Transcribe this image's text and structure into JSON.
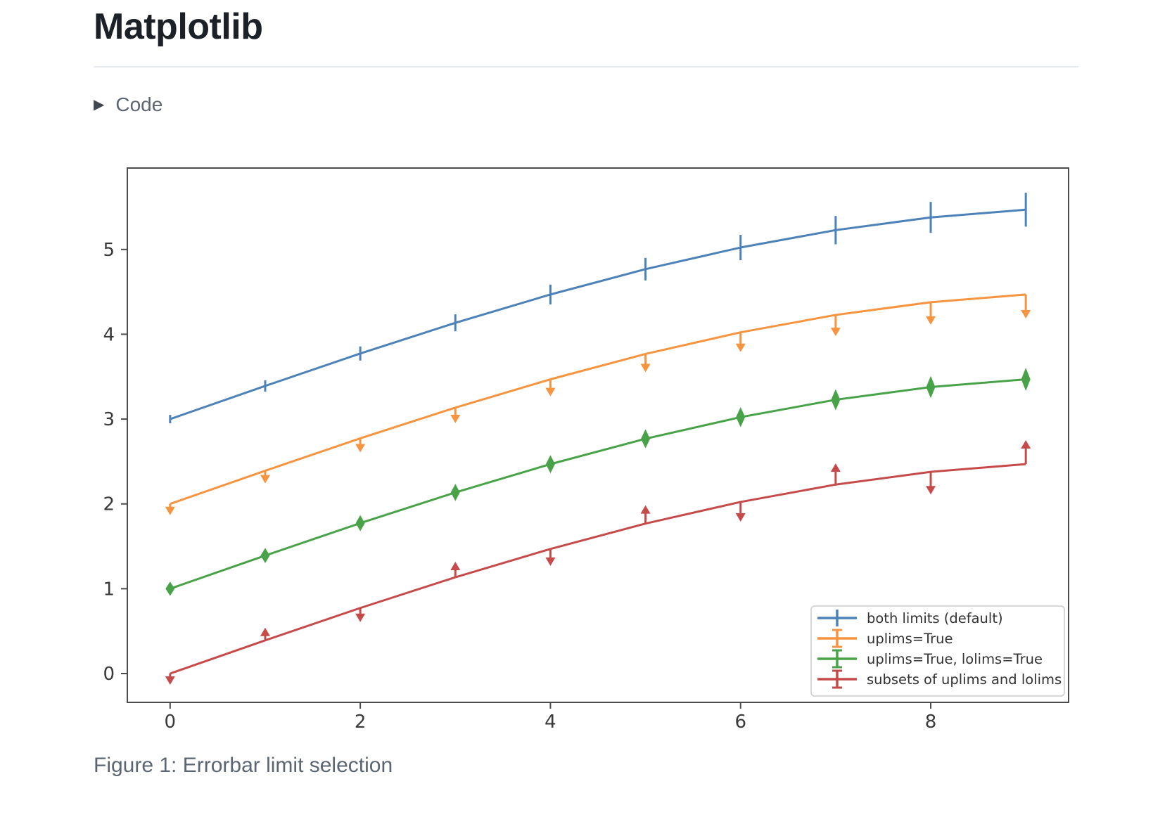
{
  "page": {
    "title": "Matplotlib",
    "code_fold_label": "Code",
    "caption": "Figure 1: Errorbar limit selection"
  },
  "chart_data": {
    "type": "line",
    "variant": "errorbar-limits",
    "title": "",
    "xlabel": "",
    "ylabel": "",
    "grid": false,
    "xlim": [
      -0.45,
      9.45
    ],
    "ylim": [
      -0.34,
      5.96
    ],
    "x_ticks": [
      0,
      2,
      4,
      6,
      8
    ],
    "y_ticks": [
      0,
      1,
      2,
      3,
      4,
      5
    ],
    "legend_position": "lower right",
    "x": [
      0,
      1,
      2,
      3,
      4,
      5,
      6,
      7,
      8,
      9
    ],
    "yerr": [
      0.05,
      0.067,
      0.083,
      0.1,
      0.117,
      0.133,
      0.15,
      0.167,
      0.183,
      0.2
    ],
    "series": [
      {
        "name": "both limits (default)",
        "color": "#4d82b8",
        "limit_style": "bars",
        "values": [
          3.0,
          3.391,
          3.773,
          4.135,
          4.469,
          4.768,
          5.023,
          5.228,
          5.378,
          5.469
        ]
      },
      {
        "name": "uplims=True",
        "color": "#f7943f",
        "limit_style": "uplims",
        "values": [
          2.0,
          2.391,
          2.773,
          3.135,
          3.469,
          3.768,
          4.023,
          4.228,
          4.378,
          4.469
        ]
      },
      {
        "name": "uplims=True, lolims=True",
        "color": "#48a348",
        "limit_style": "uplims+lolims",
        "values": [
          1.0,
          1.391,
          1.773,
          2.135,
          2.469,
          2.768,
          3.023,
          3.228,
          3.378,
          3.469
        ]
      },
      {
        "name": "subsets of uplims and lolims",
        "color": "#c74a4a",
        "limit_style": "alternating",
        "arrows": [
          "down",
          "up",
          "down",
          "up",
          "down",
          "up",
          "down",
          "up",
          "down",
          "up"
        ],
        "values": [
          0.0,
          0.391,
          0.773,
          1.135,
          1.469,
          1.768,
          2.023,
          2.228,
          2.378,
          2.469
        ]
      }
    ],
    "style": {
      "spine_color": "#4c4c4c",
      "tick_label_color": "#3a3a3a",
      "legend_border_color": "#cccccc",
      "legend_text_color": "#333333"
    }
  }
}
